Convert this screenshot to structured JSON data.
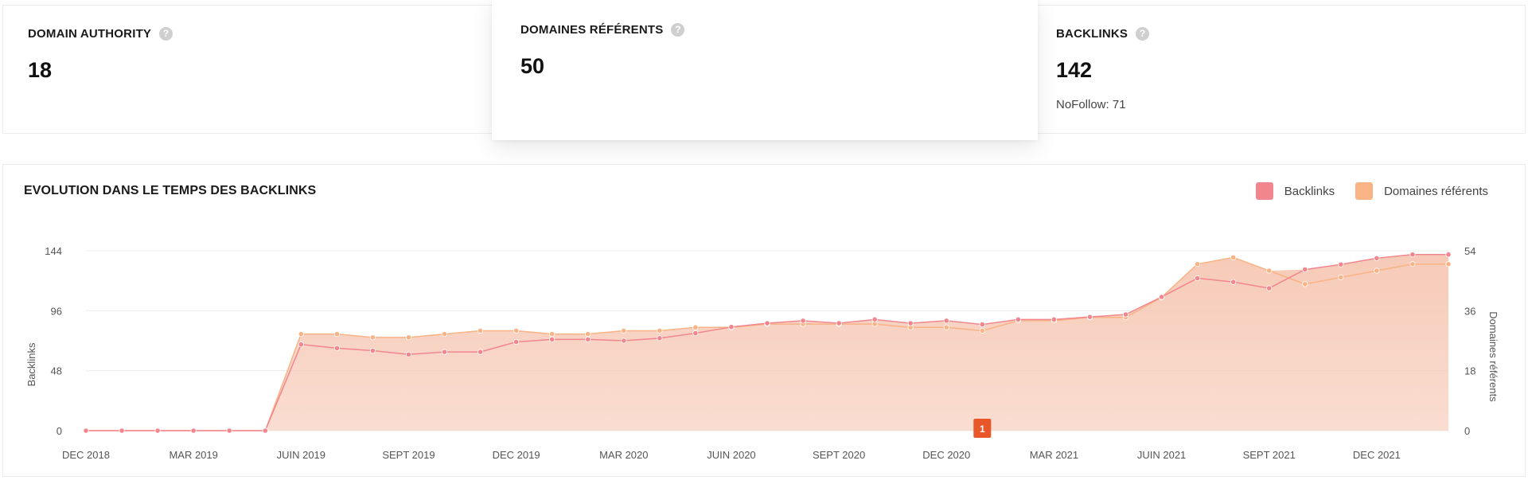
{
  "metrics": {
    "domain_authority": {
      "label": "DOMAIN AUTHORITY",
      "value": "18"
    },
    "referring_domains": {
      "label": "DOMAINES RÉFÉRENTS",
      "value": "50"
    },
    "backlinks": {
      "label": "BACKLINKS",
      "value": "142",
      "sub": "NoFollow: 71"
    }
  },
  "help_icon_glyph": "?",
  "colors": {
    "backlinks": "#f2868e",
    "referring_domains": "#f9b384",
    "fill": "#f6c7b3",
    "annotation": "#e8572a"
  },
  "chart_data": {
    "type": "area",
    "title": "EVOLUTION DANS LE TEMPS DES BACKLINKS",
    "ylabel": "Backlinks",
    "y2label": "Domaines référents",
    "ylim": [
      0,
      144
    ],
    "y2lim": [
      0,
      54
    ],
    "yticks": [
      0,
      48,
      96,
      144
    ],
    "y2ticks": [
      0,
      18,
      36,
      54
    ],
    "grid": true,
    "legend_position": "top-right",
    "x_tick_labels": [
      "DEC 2018",
      "MAR 2019",
      "JUIN 2019",
      "SEPT 2019",
      "DEC 2019",
      "MAR 2020",
      "JUIN 2020",
      "SEPT 2020",
      "DEC 2020",
      "MAR 2021",
      "JUIN 2021",
      "SEPT 2021",
      "DEC 2021"
    ],
    "x": [
      "2018-12",
      "2019-01",
      "2019-02",
      "2019-03",
      "2019-04",
      "2019-05",
      "2019-06",
      "2019-07",
      "2019-08",
      "2019-09",
      "2019-10",
      "2019-11",
      "2019-12",
      "2020-01",
      "2020-02",
      "2020-03",
      "2020-04",
      "2020-05",
      "2020-06",
      "2020-07",
      "2020-08",
      "2020-09",
      "2020-10",
      "2020-11",
      "2020-12",
      "2021-01",
      "2021-02",
      "2021-03",
      "2021-04",
      "2021-05",
      "2021-06",
      "2021-07",
      "2021-08",
      "2021-09",
      "2021-10",
      "2021-11",
      "2021-12",
      "2022-01",
      "2022-02"
    ],
    "series": [
      {
        "name": "Backlinks",
        "axis": "left",
        "values": [
          0,
          0,
          0,
          0,
          0,
          0,
          69,
          66,
          64,
          61,
          63,
          63,
          71,
          73,
          73,
          72,
          74,
          78,
          83,
          86,
          88,
          86,
          89,
          86,
          88,
          85,
          89,
          89,
          91,
          93,
          107,
          122,
          119,
          114,
          129,
          133,
          138,
          141,
          141
        ]
      },
      {
        "name": "Domaines référents",
        "axis": "right",
        "values": [
          0,
          0,
          0,
          0,
          0,
          0,
          29,
          29,
          28,
          28,
          29,
          30,
          30,
          29,
          29,
          30,
          30,
          31,
          31,
          32,
          32,
          32,
          32,
          31,
          31,
          30,
          33,
          33,
          34,
          34,
          40,
          50,
          52,
          48,
          44,
          46,
          48,
          50,
          50
        ]
      }
    ],
    "annotations": [
      {
        "x": "2021-01",
        "label": "1"
      }
    ]
  }
}
